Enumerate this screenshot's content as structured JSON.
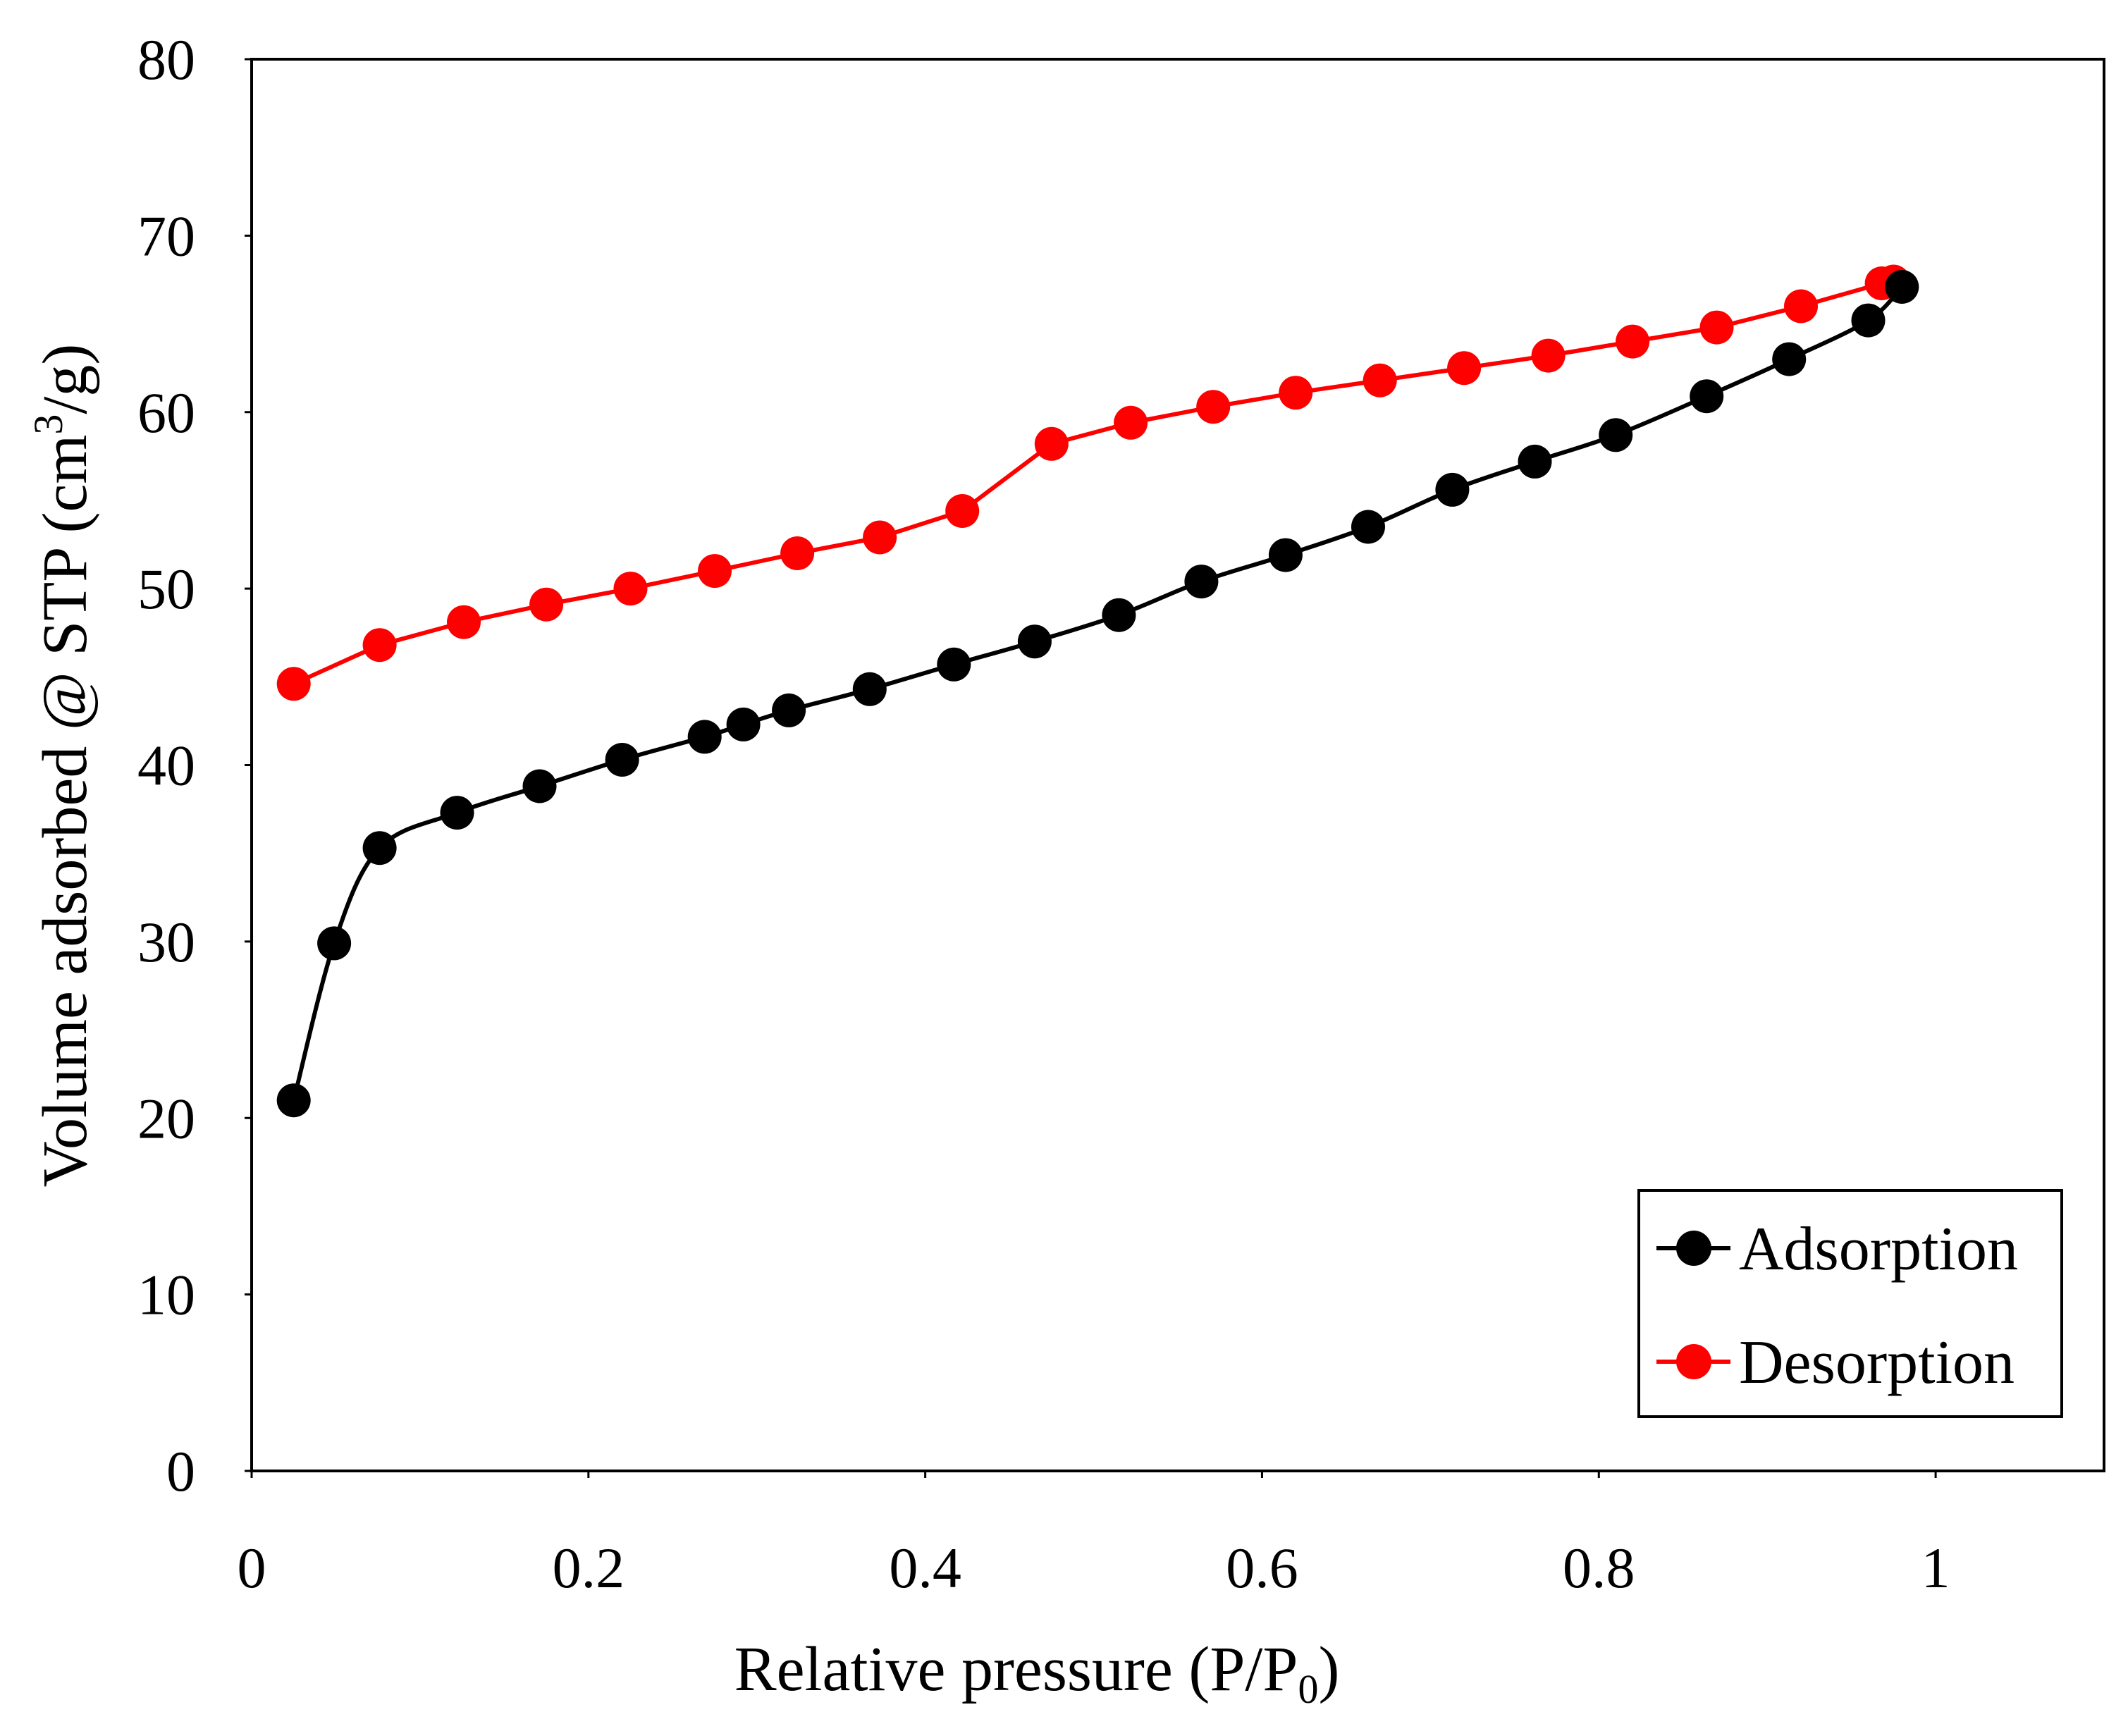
{
  "chart_data": {
    "type": "line",
    "title": "",
    "xlabel": "Relative pressure (P/P0)",
    "ylabel": "Volume adsorbed @ STP (cm3/g)",
    "xlabel_parts": {
      "main": "Relative pressure (P/P",
      "sub": "0",
      "end": ")"
    },
    "ylabel_parts": {
      "main": "Volume adsorbed @ STP (cm",
      "sup": "3",
      "end": "/g)"
    },
    "xlim": [
      0,
      1.1
    ],
    "ylim": [
      0,
      80
    ],
    "xticks": [
      0,
      0.2,
      0.4,
      0.6,
      0.8,
      1
    ],
    "xtick_labels": [
      "0",
      "0.2",
      "0.4",
      "0.6",
      "0.8",
      "1"
    ],
    "yticks": [
      0,
      10,
      20,
      30,
      40,
      50,
      60,
      70,
      80
    ],
    "ytick_labels": [
      "0",
      "10",
      "20",
      "30",
      "40",
      "50",
      "60",
      "70",
      "80"
    ],
    "grid": false,
    "legend_position": "bottom-right",
    "series": [
      {
        "name": "Adsorption",
        "color": "#000000",
        "smooth": true,
        "x": [
          0.025,
          0.049,
          0.076,
          0.122,
          0.171,
          0.22,
          0.269,
          0.292,
          0.319,
          0.367,
          0.417,
          0.465,
          0.515,
          0.564,
          0.614,
          0.663,
          0.713,
          0.762,
          0.81,
          0.864,
          0.913,
          0.96,
          0.98
        ],
        "y": [
          21.0,
          29.9,
          35.3,
          37.3,
          38.8,
          40.3,
          41.6,
          42.3,
          43.1,
          44.3,
          45.7,
          47.0,
          48.5,
          50.4,
          51.9,
          53.5,
          55.6,
          57.2,
          58.7,
          60.9,
          63.0,
          65.2,
          67.1
        ]
      },
      {
        "name": "Desorption",
        "color": "#ff0000",
        "smooth": false,
        "x": [
          0.025,
          0.076,
          0.126,
          0.175,
          0.225,
          0.275,
          0.324,
          0.373,
          0.422,
          0.475,
          0.522,
          0.571,
          0.62,
          0.67,
          0.72,
          0.77,
          0.82,
          0.87,
          0.92,
          0.968,
          0.975
        ],
        "y": [
          44.6,
          46.8,
          48.1,
          49.1,
          50.0,
          51.0,
          52.0,
          52.9,
          54.4,
          58.2,
          59.4,
          60.3,
          61.1,
          61.8,
          62.5,
          63.2,
          64.0,
          64.8,
          66.0,
          67.3,
          67.4
        ]
      }
    ]
  }
}
